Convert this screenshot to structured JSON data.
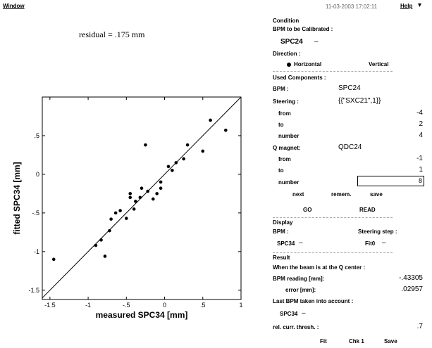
{
  "menubar": {
    "window_label": "Window",
    "timestamp": "11-03-2003 17:02:11",
    "help_label": "Help",
    "help_arrow": "▾"
  },
  "plot": {
    "residual_text": "residual =  .175 mm"
  },
  "chart_data": {
    "type": "scatter",
    "xlabel": "measured SPC34 [mm]",
    "ylabel": "fitted SPC34 [mm]",
    "xlim": [
      -1.6,
      1.0
    ],
    "ylim": [
      -1.62,
      1.0
    ],
    "xticks": [
      -1.5,
      -1,
      -0.5,
      0,
      0.5,
      1
    ],
    "xtick_labels": [
      "-1.5",
      "-1",
      "-.5",
      "0",
      ".5",
      "1"
    ],
    "yticks": [
      -1.5,
      -1,
      -0.5,
      0,
      0.5
    ],
    "ytick_labels": [
      "-1.5",
      "-1",
      "-.5",
      "0",
      ".5"
    ],
    "grid": false,
    "reference_line": {
      "slope": 1,
      "intercept": 0
    },
    "points": [
      {
        "x": -1.45,
        "y": -1.1
      },
      {
        "x": -0.9,
        "y": -0.92
      },
      {
        "x": -0.83,
        "y": -0.85
      },
      {
        "x": -0.78,
        "y": -1.06
      },
      {
        "x": -0.72,
        "y": -0.73
      },
      {
        "x": -0.7,
        "y": -0.58
      },
      {
        "x": -0.64,
        "y": -0.5
      },
      {
        "x": -0.58,
        "y": -0.47
      },
      {
        "x": -0.5,
        "y": -0.57
      },
      {
        "x": -0.45,
        "y": -0.25
      },
      {
        "x": -0.45,
        "y": -0.3
      },
      {
        "x": -0.4,
        "y": -0.45
      },
      {
        "x": -0.38,
        "y": -0.35
      },
      {
        "x": -0.32,
        "y": -0.3
      },
      {
        "x": -0.3,
        "y": -0.18
      },
      {
        "x": -0.25,
        "y": 0.38
      },
      {
        "x": -0.22,
        "y": -0.22
      },
      {
        "x": -0.15,
        "y": -0.32
      },
      {
        "x": -0.1,
        "y": -0.25
      },
      {
        "x": -0.05,
        "y": -0.18
      },
      {
        "x": -0.05,
        "y": -0.1
      },
      {
        "x": 0.05,
        "y": 0.1
      },
      {
        "x": 0.1,
        "y": 0.05
      },
      {
        "x": 0.15,
        "y": 0.15
      },
      {
        "x": 0.25,
        "y": 0.2
      },
      {
        "x": 0.3,
        "y": 0.38
      },
      {
        "x": 0.5,
        "y": 0.3
      },
      {
        "x": 0.6,
        "y": 0.7
      },
      {
        "x": 0.8,
        "y": 0.57
      }
    ]
  },
  "panel": {
    "condition": {
      "heading": "Condition",
      "bpm_cal_label": "BPM to be Calibrated :",
      "bpm_cal_value": "SPC24",
      "bpm_cal_marker": "–",
      "direction_label": "Direction :",
      "direction_options": [
        "Horizontal",
        "Vertical"
      ],
      "direction_selected": "Horizontal"
    },
    "used": {
      "heading": "Used Components :",
      "bpm_label": "BPM :",
      "bpm_value": "SPC24",
      "steering_label": "Steering :",
      "steering_value": "{{\"SXC21\",1}}",
      "s_from_label": "from",
      "s_from_value": "-4",
      "s_to_label": "to",
      "s_to_value": "2",
      "s_number_label": "number",
      "s_number_value": "4",
      "q_label": "Q magnet:",
      "q_value": "QDC24",
      "q_from_label": "from",
      "q_from_value": "-1",
      "q_to_label": "to",
      "q_to_value": "1",
      "q_number_label": "number",
      "q_number_value": "8"
    },
    "buttons1": {
      "next": "next",
      "remem": "remem.",
      "save": "save"
    },
    "buttons2": {
      "go": "GO",
      "read": "READ"
    },
    "display": {
      "heading": "Display",
      "bpm_label": "BPM :",
      "steering_step_label": "Steering step :",
      "bpm_value": "SPC34",
      "bpm_marker": "–",
      "step_value": "Fit0",
      "step_marker": "–"
    },
    "result": {
      "heading": "Result",
      "center_text": "When the beam is at the Q center :",
      "reading_label": "BPM reading [mm]:",
      "reading_value": "-.43305",
      "error_label": "error [mm]:",
      "error_value": ".02957",
      "last_label": "Last BPM taken into account :",
      "last_value": "SPC34",
      "last_marker": "–",
      "thresh_label": "rel. curr. thresh. :",
      "thresh_value": ".7"
    },
    "bottom_buttons": {
      "fit": "Fit",
      "chk": "Chk 1",
      "save": "Save"
    }
  }
}
